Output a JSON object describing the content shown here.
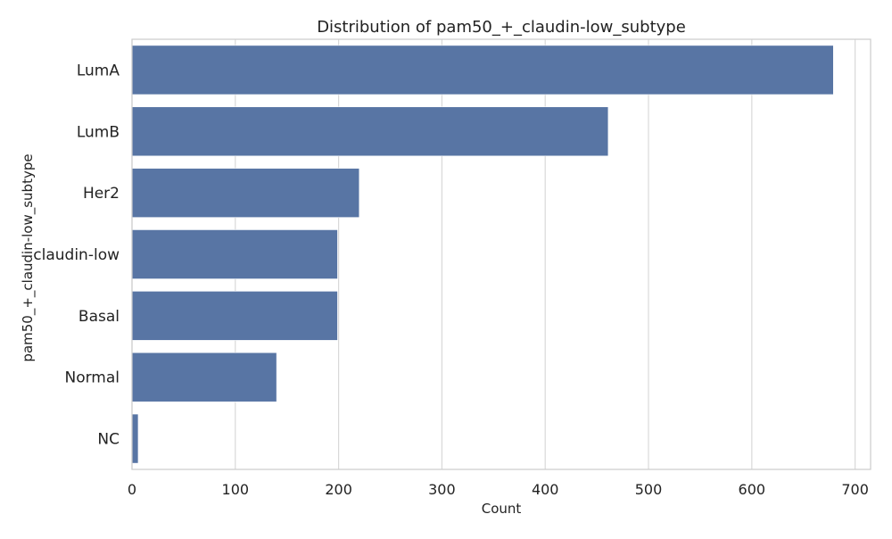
{
  "chart_data": {
    "type": "bar",
    "orientation": "horizontal",
    "title": "Distribution of pam50_+_claudin-low_subtype",
    "xlabel": "Count",
    "ylabel": "pam50_+_claudin-low_subtype",
    "categories": [
      "LumA",
      "LumB",
      "Her2",
      "claudin-low",
      "Basal",
      "Normal",
      "NC"
    ],
    "values": [
      679,
      461,
      220,
      199,
      199,
      140,
      6
    ],
    "xlim": [
      0,
      715
    ],
    "xticks": [
      0,
      100,
      200,
      300,
      400,
      500,
      600,
      700
    ],
    "grid": true,
    "bar_color": "#5875a4",
    "grid_color": "#d9d9d9"
  }
}
